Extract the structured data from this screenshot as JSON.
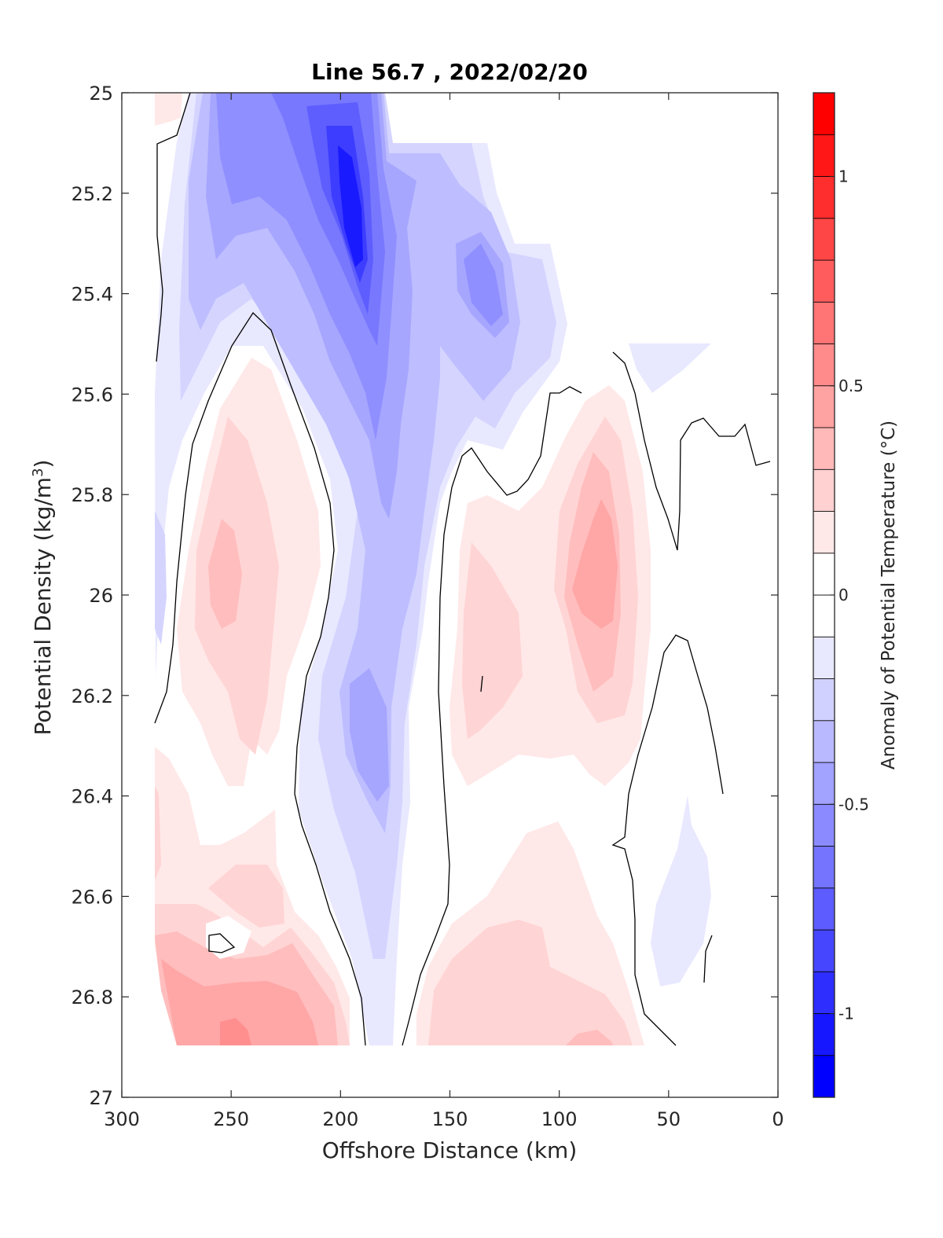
{
  "chart_data": {
    "type": "heatmap",
    "subtype": "filled-contour",
    "title": "Line 56.7 , 2022/02/20",
    "xlabel": "Offshore Distance (km)",
    "ylabel_main": "Potential Density (kg/m",
    "ylabel_sup": "3",
    "ylabel_close": ")",
    "xlim": [
      300,
      0
    ],
    "ylim": [
      25,
      27
    ],
    "x_reversed": true,
    "y_reversed": true,
    "xticks": [
      300,
      250,
      200,
      150,
      100,
      50,
      0
    ],
    "yticks": [
      25,
      25.2,
      25.4,
      25.6,
      25.8,
      26,
      26.2,
      26.4,
      26.6,
      26.8,
      27
    ],
    "ytick_labels": [
      "25",
      "25.2",
      "25.4",
      "25.6",
      "25.8",
      "26",
      "26.2",
      "26.4",
      "26.6",
      "26.8",
      "27"
    ],
    "colorbar": {
      "label": "Anomaly of Potential Temperature (°C)",
      "range": [
        -1.2,
        1.2
      ],
      "step": 0.1,
      "ticks": [
        1,
        0.5,
        0,
        -0.5,
        -1
      ],
      "tick_labels": [
        "1",
        "0.5",
        "0",
        "-0.5",
        "-1"
      ],
      "low_color": "#0000ff",
      "mid_color": "#ffffff",
      "high_color": "#ff0000"
    },
    "contour_line_level": 0,
    "anomaly_features": [
      {
        "x": 190,
        "y": 25.25,
        "value": -1.0
      },
      {
        "x": 130,
        "y": 25.4,
        "value": -0.6
      },
      {
        "x": 190,
        "y": 26.3,
        "value": -0.4
      },
      {
        "x": 265,
        "y": 25.2,
        "value": -0.6
      },
      {
        "x": 255,
        "y": 25.95,
        "value": 0.4
      },
      {
        "x": 85,
        "y": 25.95,
        "value": 0.4
      },
      {
        "x": 140,
        "y": 26.1,
        "value": 0.3
      },
      {
        "x": 250,
        "y": 26.85,
        "value": 0.5
      },
      {
        "x": 40,
        "y": 26.65,
        "value": -0.2
      }
    ]
  }
}
